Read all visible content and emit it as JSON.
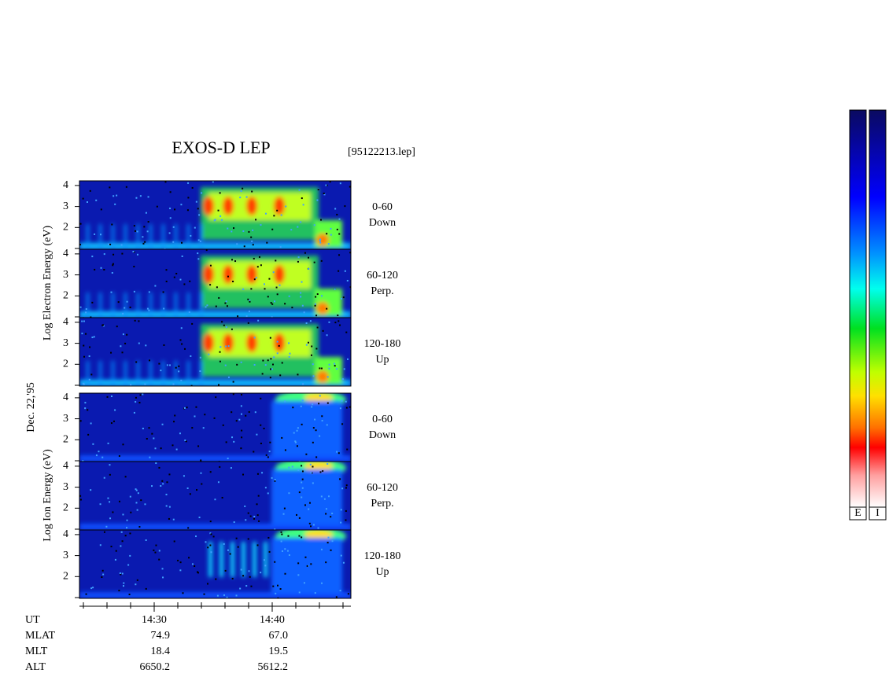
{
  "title": "EXOS-D LEP",
  "file": "[95122213.lep]",
  "date": "Dec. 22,'95",
  "electron_axis_label": "Log Electron Energy (eV)",
  "ion_axis_label": "Log Ion Energy (eV)",
  "energy_ticks": [
    "4",
    "3",
    "2"
  ],
  "pitch_angles": [
    {
      "range": "0-60",
      "direction": "Down"
    },
    {
      "range": "60-120",
      "direction": "Perp."
    },
    {
      "range": "120-180",
      "direction": "Up"
    }
  ],
  "time_ticks": [
    "14:30",
    "14:40"
  ],
  "ephemeris": [
    {
      "name": "UT"
    },
    {
      "name": "MLAT",
      "values": [
        "74.9",
        "67.0"
      ]
    },
    {
      "name": "MLT",
      "values": [
        "18.4",
        "19.5"
      ]
    },
    {
      "name": "ALT",
      "values": [
        "6650.2",
        "5612.2"
      ]
    }
  ],
  "colorbar_labels": [
    "E",
    "I"
  ]
}
